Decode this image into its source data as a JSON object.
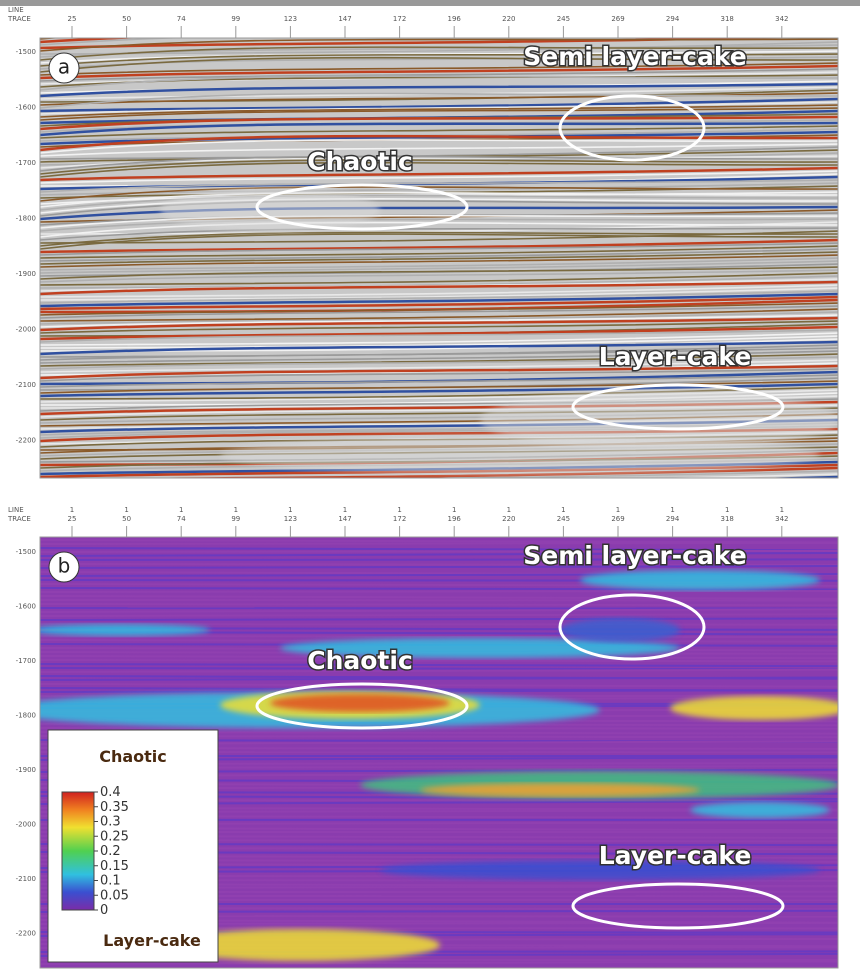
{
  "panels": [
    {
      "label": "a",
      "axis": {
        "line_label": "LINE",
        "trace_label": "TRACE",
        "traces": [
          "25",
          "50",
          "74",
          "99",
          "123",
          "147",
          "172",
          "196",
          "220",
          "245",
          "269",
          "294",
          "318",
          "342"
        ],
        "times": [
          "-1500",
          "-1600",
          "-1700",
          "-1800",
          "-1900",
          "-2000",
          "-2100",
          "-2200"
        ]
      },
      "annotations": [
        "Semi layer-cake",
        "Chaotic",
        "Layer-cake"
      ]
    },
    {
      "label": "b",
      "axis": {
        "line_label": "LINE",
        "trace_label": "TRACE",
        "line_number": "1",
        "traces": [
          "25",
          "50",
          "74",
          "99",
          "123",
          "147",
          "172",
          "196",
          "220",
          "245",
          "269",
          "294",
          "318",
          "342"
        ],
        "times": [
          "-1500",
          "-1600",
          "-1700",
          "-1800",
          "-1900",
          "-2000",
          "-2100",
          "-2200"
        ]
      },
      "annotations": [
        "Semi layer-cake",
        "Chaotic",
        "Layer-cake"
      ],
      "colorbar": {
        "top_label": "Chaotic",
        "bottom_label": "Layer-cake",
        "ticks": [
          "0.4",
          "0.35",
          "0.3",
          "0.25",
          "0.2",
          "0.15",
          "0.1",
          "0.05",
          "0"
        ]
      }
    }
  ]
}
